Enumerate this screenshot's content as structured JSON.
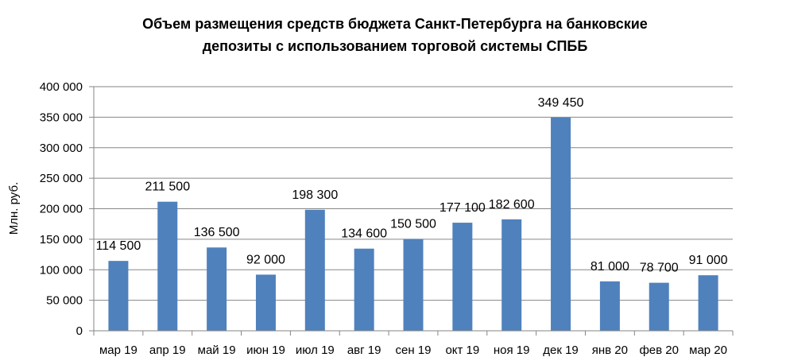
{
  "chart_data": {
    "type": "bar",
    "title_lines": [
      "Объем размещения средств бюджета Санкт-Петербурга на банковские",
      "депозиты с использованием торговой системы СПББ"
    ],
    "xlabel": "",
    "ylabel": "Млн. руб.",
    "ylim": [
      0,
      400000
    ],
    "y_ticks": [
      0,
      50000,
      100000,
      150000,
      200000,
      250000,
      300000,
      350000,
      400000
    ],
    "y_tick_labels": [
      "0",
      "50 000",
      "100 000",
      "150 000",
      "200 000",
      "250 000",
      "300 000",
      "350 000",
      "400 000"
    ],
    "categories": [
      "мар 19",
      "апр 19",
      "май 19",
      "июн 19",
      "июл 19",
      "авг 19",
      "сен 19",
      "окт 19",
      "ноя 19",
      "дек 19",
      "янв 20",
      "фев 20",
      "мар 20"
    ],
    "values": [
      114500,
      211500,
      136500,
      92000,
      198300,
      134600,
      150500,
      177100,
      182600,
      349450,
      81000,
      78700,
      91000
    ],
    "data_labels": [
      "114 500",
      "211 500",
      "136 500",
      "92 000",
      "198 300",
      "134 600",
      "150 500",
      "177 100",
      "182 600",
      "349 450",
      "81 000",
      "78 700",
      "91 000"
    ],
    "bar_color": "#4f81bd",
    "grid": true,
    "legend": "none"
  }
}
